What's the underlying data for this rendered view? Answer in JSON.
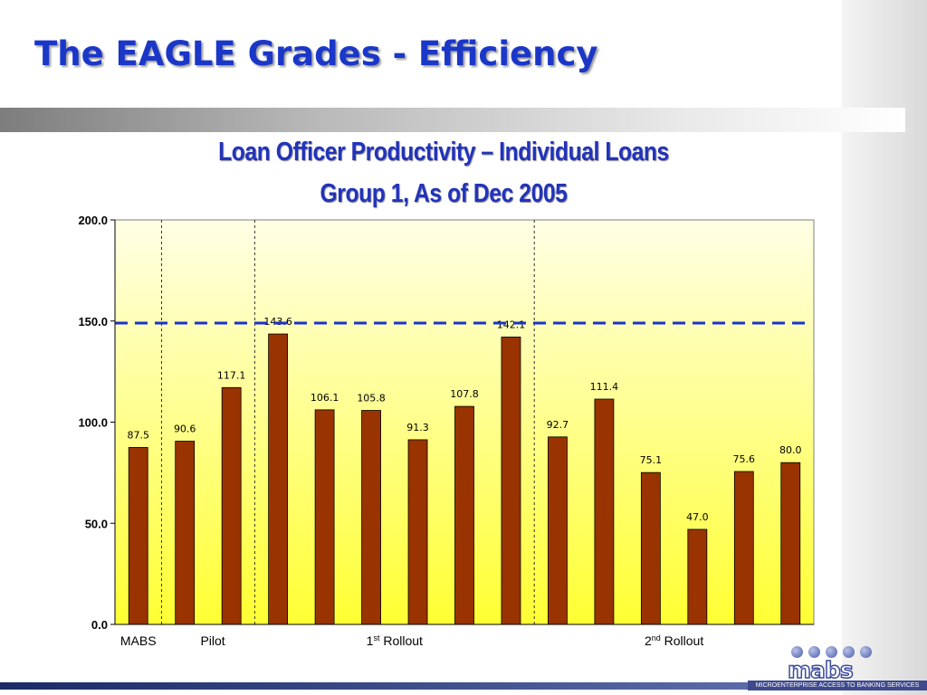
{
  "slide": {
    "title": "The EAGLE Grades - Efficiency"
  },
  "chart_data": {
    "type": "bar",
    "title": "Loan Officer Productivity – Individual Loans",
    "subtitle": "Group 1, As of Dec 2005",
    "values": [
      87.5,
      90.6,
      117.1,
      143.6,
      106.1,
      105.8,
      91.3,
      107.8,
      142.1,
      92.7,
      111.4,
      75.1,
      47.0,
      75.6,
      80.0
    ],
    "data_labels": [
      "87.5",
      "90.6",
      "117.1",
      "143.6",
      "106.1",
      "105.8",
      "91.3",
      "107.8",
      "142.1",
      "92.7",
      "111.4",
      "75.1",
      "47.0",
      "75.6",
      "80.0"
    ],
    "highlight_index": 0,
    "ylim": [
      0,
      200
    ],
    "yticks": [
      0,
      50,
      100,
      150,
      200
    ],
    "ytick_labels": [
      "0.0",
      "50.0",
      "100.0",
      "150.0",
      "200.0"
    ],
    "reference_line": 149,
    "group_dividers_after": [
      0,
      2,
      8
    ],
    "groups": [
      {
        "label": "MABS",
        "sup": "",
        "suffix": "",
        "center_index": 0
      },
      {
        "label": "Pilot",
        "sup": "",
        "suffix": "",
        "center_index": 1.6
      },
      {
        "label": "1",
        "sup": "st",
        "suffix": " Rollout",
        "center_index": 5.5
      },
      {
        "label": "2",
        "sup": "nd",
        "suffix": " Rollout",
        "center_index": 11.5
      }
    ],
    "grid": false,
    "colors": {
      "bar": "#993300",
      "bar_edge": "#000000",
      "reference_line": "#1a33cc",
      "highlight_label": "#ff0000",
      "plot_bg_top": "#ffffe6",
      "plot_bg_bottom": "#ffff33"
    }
  },
  "logo": {
    "text": "mabs",
    "tagline": "MICROENTERPRISE ACCESS TO BANKING SERVICES"
  }
}
